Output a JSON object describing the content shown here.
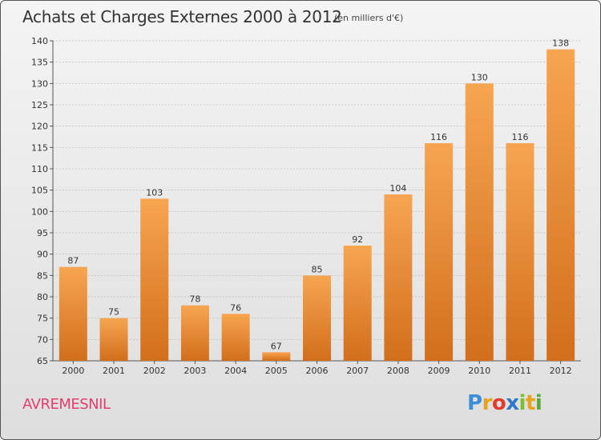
{
  "chart_data": {
    "type": "bar",
    "title": "Achats et Charges Externes 2000 à 2012",
    "subtitle": "(en milliers d'€)",
    "categories": [
      "2000",
      "2001",
      "2002",
      "2003",
      "2004",
      "2005",
      "2006",
      "2007",
      "2008",
      "2009",
      "2010",
      "2011",
      "2012"
    ],
    "values": [
      87,
      75,
      103,
      78,
      76,
      67,
      85,
      92,
      104,
      116,
      130,
      116,
      138
    ],
    "ylim": [
      65,
      140
    ],
    "yticks": [
      65,
      70,
      75,
      80,
      85,
      90,
      95,
      100,
      105,
      110,
      115,
      120,
      125,
      130,
      135,
      140
    ],
    "grid": true,
    "bar_color_top": "#f7a550",
    "bar_color_bottom": "#d26e1c"
  },
  "footer": {
    "commune": "AVREMESNIL",
    "logo_text": "Proxiti",
    "logo_letters": [
      {
        "char": "P",
        "color": "#3a8fd6"
      },
      {
        "char": "r",
        "color": "#e8a21e"
      },
      {
        "char": "o",
        "color": "#e23b2f"
      },
      {
        "char": "x",
        "color": "#2f77c7"
      },
      {
        "char": "i",
        "color": "#7cbf2a"
      },
      {
        "char": "t",
        "color": "#e8a21e"
      },
      {
        "char": "i",
        "color": "#5aa83a"
      }
    ]
  }
}
